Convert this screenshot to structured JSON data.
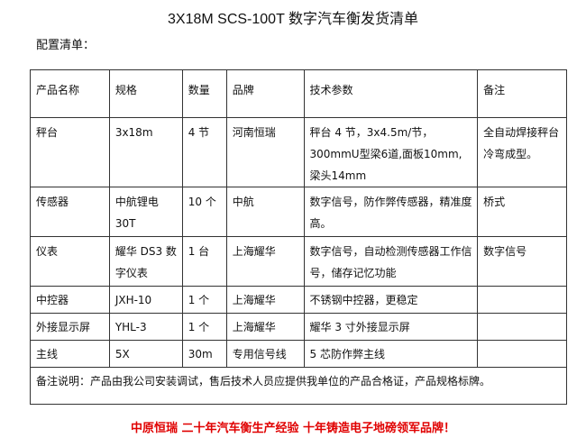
{
  "title": "3X18M SCS-100T 数字汽车衡发货清单",
  "subtitle": "配置清单：",
  "headers": [
    "产品名称",
    "规格",
    "数量",
    "品牌",
    "技术参数",
    "备注"
  ],
  "rows": [
    [
      "秤台",
      "3x18m",
      "4 节",
      "河南恒瑞",
      "秤台 4 节，3x4.5m/节，300mmU型梁6道,面板10mm,梁头14mm",
      "全自动焊接秤台冷弯成型。"
    ],
    [
      "传感器",
      "中航锂电30T",
      "10 个",
      "中航",
      "数字信号，防作弊传感器，精准度高。",
      "桥式"
    ],
    [
      "仪表",
      "耀华 DS3 数字仪表",
      "1 台",
      "上海耀华",
      "数字信号，自动检测传感器工作信号，储存记忆功能",
      "数字信号"
    ],
    [
      "中控器",
      "JXH-10",
      "1 个",
      "上海耀华",
      "不锈钢中控器，更稳定",
      ""
    ],
    [
      "外接显示屏",
      "YHL-3",
      "1 个",
      "上海耀华",
      "耀华 3 寸外接显示屏",
      ""
    ],
    [
      "主线",
      "5X",
      "30m",
      "专用信号线",
      "5 芯防作弊主线",
      ""
    ]
  ],
  "note": "备注说明：产品由我公司安装调试，售后技术人员应提供我单位的产品合格证，产品规格标牌。",
  "footer": "中原恒瑞  二十年汽车衡生产经验  十年铸造电子地磅领军品牌！",
  "colors": {
    "footer": "#e00000"
  }
}
